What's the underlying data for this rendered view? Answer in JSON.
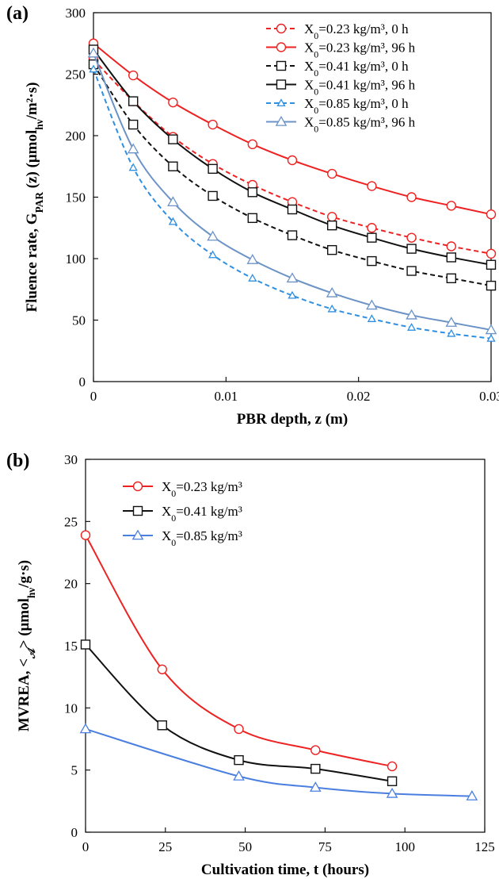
{
  "chart_data": [
    {
      "panel": "(a)",
      "type": "line",
      "xlabel": "PBR depth, z (m)",
      "ylabel_parts": [
        "Fluence rate, G",
        "PAR",
        " (z) (μmol",
        "hν",
        "/m²·s)"
      ],
      "xlim": [
        0,
        0.03
      ],
      "ylim": [
        0,
        300
      ],
      "xticks": [
        0,
        0.01,
        0.02,
        0.03
      ],
      "xtick_labels": [
        "0",
        "0.01",
        "0.02",
        "0.03"
      ],
      "yticks": [
        0,
        50,
        100,
        150,
        200,
        250,
        300
      ],
      "ytick_labels": [
        "0",
        "50",
        "100",
        "150",
        "200",
        "250",
        "300"
      ],
      "grid": false,
      "legend_position": "top-right",
      "series": [
        {
          "legend": [
            "X",
            "0",
            "=0.23 kg/m³, 0 h"
          ],
          "color": "#ee2222",
          "dash": "dashed",
          "marker": "circle",
          "x": [
            0,
            0.003,
            0.006,
            0.009,
            0.012,
            0.015,
            0.018,
            0.021,
            0.024,
            0.027,
            0.03
          ],
          "y": [
            262,
            228,
            199,
            177,
            160,
            146,
            134,
            125,
            117,
            110,
            104
          ]
        },
        {
          "legend": [
            "X",
            "0",
            "=0.23 kg/m³, 96 h"
          ],
          "color": "#ee2222",
          "dash": "solid",
          "marker": "circle",
          "x": [
            0,
            0.003,
            0.006,
            0.009,
            0.012,
            0.015,
            0.018,
            0.021,
            0.024,
            0.027,
            0.03
          ],
          "y": [
            275,
            249,
            227,
            209,
            193,
            180,
            169,
            159,
            150,
            143,
            136
          ]
        },
        {
          "legend": [
            "X",
            "0",
            "=0.41 kg/m³, 0 h"
          ],
          "color": "#111111",
          "dash": "dashed",
          "marker": "square",
          "x": [
            0,
            0.003,
            0.006,
            0.009,
            0.012,
            0.015,
            0.018,
            0.021,
            0.024,
            0.027,
            0.03
          ],
          "y": [
            258,
            209,
            175,
            151,
            133,
            119,
            107,
            98,
            90,
            84,
            78
          ]
        },
        {
          "legend": [
            "X",
            "0",
            "=0.41 kg/m³, 96 h"
          ],
          "color": "#111111",
          "dash": "solid",
          "marker": "square",
          "x": [
            0,
            0.003,
            0.006,
            0.009,
            0.012,
            0.015,
            0.018,
            0.021,
            0.024,
            0.027,
            0.03
          ],
          "y": [
            270,
            228,
            197,
            173,
            154,
            140,
            127,
            117,
            108,
            101,
            95
          ]
        },
        {
          "legend": [
            "X",
            "0",
            "=0.85 kg/m³, 0 h"
          ],
          "color": "#2f8fe0",
          "dash": "dashed",
          "marker": "triangle-small",
          "x": [
            0,
            0.003,
            0.006,
            0.009,
            0.012,
            0.015,
            0.018,
            0.021,
            0.024,
            0.027,
            0.03
          ],
          "y": [
            254,
            174,
            130,
            103,
            84,
            70,
            59,
            51,
            44,
            39,
            35
          ]
        },
        {
          "legend": [
            "X",
            "0",
            "=0.85 kg/m³, 96 h"
          ],
          "color": "#6c93c6",
          "dash": "solid",
          "marker": "triangle",
          "x": [
            0,
            0.003,
            0.006,
            0.009,
            0.012,
            0.015,
            0.018,
            0.021,
            0.024,
            0.027,
            0.03
          ],
          "y": [
            267,
            189,
            146,
            118,
            99,
            84,
            72,
            62,
            54,
            48,
            42
          ]
        }
      ]
    },
    {
      "panel": "(b)",
      "type": "line",
      "xlabel": "Cultivation time, t (hours)",
      "ylabel_parts": [
        "MVREA, <",
        "𝒜",
        "> (μmol",
        "hν",
        "/g·s)"
      ],
      "xlim": [
        0,
        125
      ],
      "ylim": [
        0,
        30
      ],
      "xticks": [
        0,
        25,
        50,
        75,
        100,
        125
      ],
      "xtick_labels": [
        "0",
        "25",
        "50",
        "75",
        "100",
        "125"
      ],
      "yticks": [
        0,
        5,
        10,
        15,
        20,
        25,
        30
      ],
      "ytick_labels": [
        "0",
        "5",
        "10",
        "15",
        "20",
        "25",
        "30"
      ],
      "grid": false,
      "legend_position": "top-left",
      "series": [
        {
          "legend": [
            "X",
            "0",
            "=0.23 kg/m³"
          ],
          "color": "#ee2222",
          "dash": "solid",
          "marker": "circle",
          "x": [
            0,
            24,
            48,
            72,
            96
          ],
          "y": [
            23.9,
            13.1,
            8.3,
            6.6,
            5.3
          ]
        },
        {
          "legend": [
            "X",
            "0",
            "=0.41 kg/m³"
          ],
          "color": "#111111",
          "dash": "solid",
          "marker": "square",
          "x": [
            0,
            24,
            48,
            72,
            96
          ],
          "y": [
            15.1,
            8.6,
            5.8,
            5.1,
            4.1
          ]
        },
        {
          "legend": [
            "X",
            "0",
            "=0.85 kg/m³"
          ],
          "color": "#4a7fe0",
          "dash": "solid",
          "marker": "triangle",
          "x": [
            0,
            48,
            72,
            96,
            121
          ],
          "y": [
            8.3,
            4.5,
            3.6,
            3.1,
            2.9
          ]
        }
      ]
    }
  ]
}
